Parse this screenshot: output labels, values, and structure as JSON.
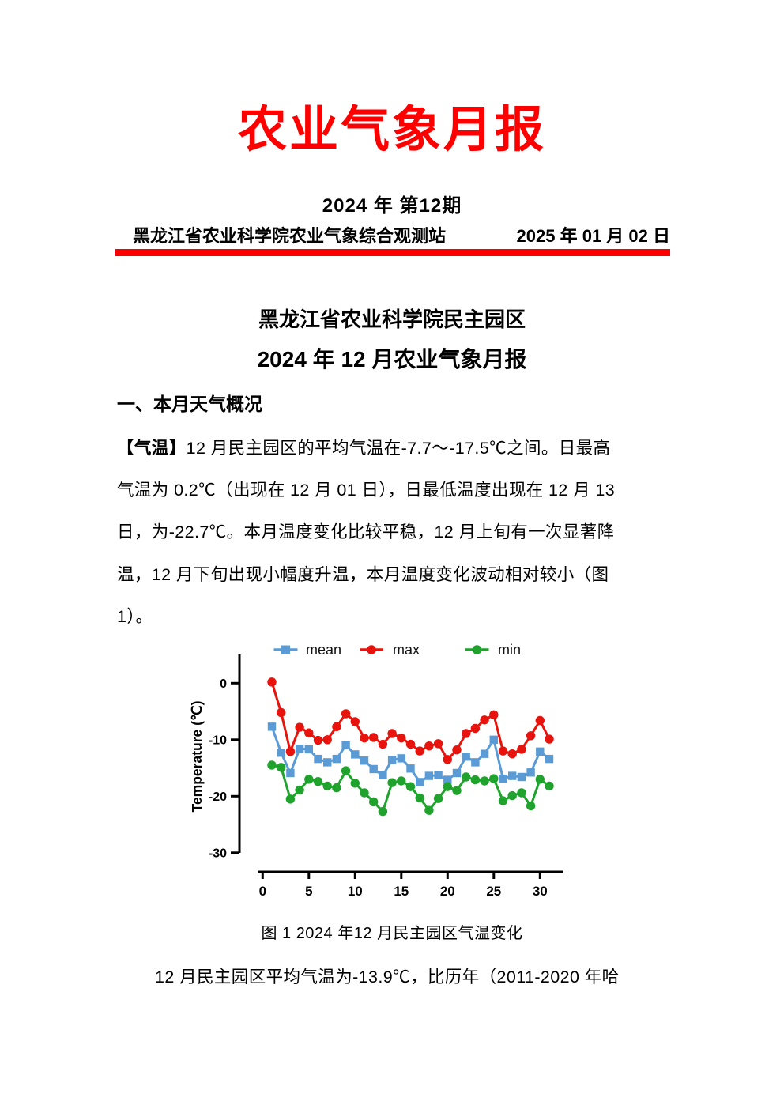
{
  "header": {
    "title": "农业气象月报",
    "title_color": "#ff0000",
    "issue": "2024 年 第12期",
    "station": "黑龙江省农业科学院农业气象综合观测站",
    "date": "2025 年 01 月 02 日"
  },
  "report": {
    "subtitle1": "黑龙江省农业科学院民主园区",
    "subtitle2": "2024 年 12 月农业气象月报",
    "section1_heading": "一、本月天气概况",
    "para1_lead": "【气温】",
    "para1_lines": [
      "12 月民主园区的平均气温在-7.7～-17.5℃之间。日最高",
      "气温为 0.2℃（出现在 12 月 01 日），日最低温度出现在 12 月 13",
      "日，为-22.7℃。本月温度变化比较平稳，12 月上旬有一次显著降",
      "温，12 月下旬出现小幅度升温，本月温度变化波动相对较小（图",
      "1）。"
    ],
    "figure_caption": "图 1 2024 年12 月民主园区气温变化",
    "para2_line": "12 月民主园区平均气温为-13.9℃，比历年（2011-2020 年哈"
  },
  "chart_data": {
    "type": "line",
    "title": "",
    "xlabel": "",
    "ylabel": "Temperature (℃)",
    "x": [
      1,
      2,
      3,
      4,
      5,
      6,
      7,
      8,
      9,
      10,
      11,
      12,
      13,
      14,
      15,
      16,
      17,
      18,
      19,
      20,
      21,
      22,
      23,
      24,
      25,
      26,
      27,
      28,
      29,
      30,
      31
    ],
    "xticks": [
      0,
      5,
      10,
      15,
      20,
      25,
      30
    ],
    "yticks": [
      0,
      -10,
      -20,
      -30
    ],
    "xlim": [
      -0.5,
      31.8
    ],
    "ylim": [
      -31,
      5
    ],
    "grid": false,
    "legend_position": "top",
    "series": [
      {
        "name": "mean",
        "color": "#5B9BD5",
        "marker": "square",
        "values": [
          -7.7,
          -12.3,
          -15.9,
          -11.6,
          -11.7,
          -13.4,
          -14.0,
          -13.4,
          -11.0,
          -12.6,
          -13.7,
          -15.2,
          -16.3,
          -13.6,
          -13.3,
          -15.1,
          -17.5,
          -16.4,
          -16.3,
          -17.1,
          -15.9,
          -13.0,
          -14.0,
          -12.5,
          -10.0,
          -16.9,
          -16.4,
          -16.6,
          -15.8,
          -12.1,
          -13.4
        ]
      },
      {
        "name": "max",
        "color": "#E8130C",
        "marker": "circle",
        "values": [
          0.2,
          -5.2,
          -12.1,
          -7.8,
          -8.8,
          -10.1,
          -10.0,
          -7.7,
          -5.4,
          -6.8,
          -9.7,
          -9.6,
          -10.8,
          -8.9,
          -9.7,
          -10.8,
          -12.0,
          -11.1,
          -10.7,
          -13.5,
          -11.8,
          -8.9,
          -8.0,
          -6.5,
          -5.6,
          -12.0,
          -12.5,
          -11.7,
          -9.3,
          -6.6,
          -9.9
        ]
      },
      {
        "name": "min",
        "color": "#1FA32C",
        "marker": "circle",
        "values": [
          -14.5,
          -14.9,
          -20.5,
          -18.9,
          -17.0,
          -17.4,
          -18.2,
          -18.5,
          -15.5,
          -17.7,
          -19.4,
          -21.0,
          -22.7,
          -17.6,
          -17.3,
          -18.3,
          -20.3,
          -22.5,
          -20.4,
          -18.3,
          -19.0,
          -16.6,
          -17.1,
          -17.3,
          -16.9,
          -20.8,
          -19.9,
          -19.4,
          -21.7,
          -17.0,
          -18.2
        ]
      }
    ]
  }
}
